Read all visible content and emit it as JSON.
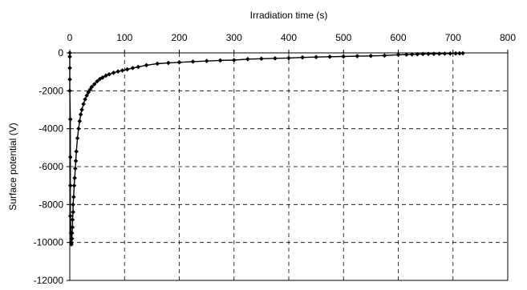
{
  "chart_data": {
    "type": "scatter",
    "title": "",
    "xlabel": "Irradiation time (s)",
    "ylabel": "Surface potential (V)",
    "xlim": [
      0,
      800
    ],
    "ylim": [
      -12000,
      0
    ],
    "x_ticks": [
      0,
      100,
      200,
      300,
      400,
      500,
      600,
      700,
      800
    ],
    "y_ticks": [
      0,
      -2000,
      -4000,
      -6000,
      -8000,
      -10000,
      -12000
    ],
    "x_axis_position": "top",
    "grid": true,
    "legend": "none",
    "line_color": "#000000",
    "marker": "diamond",
    "series": [
      {
        "x": [
          0,
          0,
          0,
          0,
          0,
          1,
          1,
          1,
          1,
          2,
          2,
          3,
          3,
          4,
          4,
          5,
          5,
          6,
          6,
          7,
          8,
          9,
          10,
          11,
          12,
          14,
          16,
          18,
          20,
          22,
          25,
          28,
          31,
          34,
          37,
          40,
          45,
          50,
          55,
          60,
          66,
          72,
          80,
          88,
          96,
          105,
          115,
          125,
          140,
          160,
          180,
          200,
          225,
          250,
          275,
          300,
          325,
          350,
          375,
          400,
          425,
          450,
          475,
          500,
          525,
          550,
          575,
          600,
          615,
          625,
          635,
          645,
          655,
          665,
          675,
          685,
          695,
          705,
          712,
          718
        ],
        "y": [
          0,
          -200,
          -800,
          -1400,
          -2000,
          -3500,
          -5500,
          -7000,
          -8600,
          -9500,
          -10000,
          -10100,
          -10000,
          -9800,
          -9500,
          -9200,
          -8800,
          -8400,
          -8000,
          -7600,
          -7000,
          -6600,
          -6100,
          -5700,
          -5200,
          -4500,
          -4000,
          -3600,
          -3250,
          -3000,
          -2700,
          -2450,
          -2250,
          -2080,
          -1940,
          -1800,
          -1650,
          -1500,
          -1380,
          -1300,
          -1200,
          -1130,
          -1050,
          -980,
          -930,
          -870,
          -800,
          -740,
          -650,
          -570,
          -530,
          -500,
          -460,
          -430,
          -400,
          -380,
          -330,
          -310,
          -290,
          -270,
          -240,
          -220,
          -205,
          -190,
          -170,
          -160,
          -140,
          -100,
          -90,
          -80,
          -70,
          -60,
          -55,
          -50,
          -45,
          -40,
          -35,
          -30,
          -25,
          -20
        ]
      }
    ]
  }
}
